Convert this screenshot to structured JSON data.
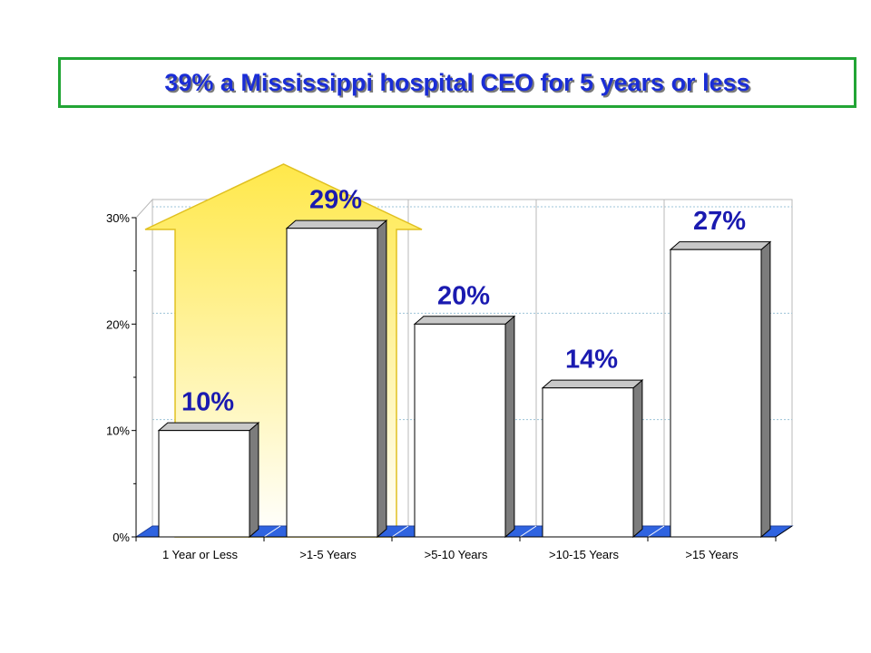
{
  "title": "39% a Mississippi hospital CEO for 5 years or less",
  "colors": {
    "title_border": "#22a535",
    "title_text": "#1a2dd6",
    "data_label": "#1a1ab0",
    "floor": "#2f63e0",
    "arrow": "#ffe84a"
  },
  "chart_data": {
    "type": "bar",
    "title": "39% a Mississippi hospital CEO for 5 years or less",
    "categories": [
      "1 Year or Less",
      ">1-5 Years",
      ">5-10 Years",
      ">10-15 Years",
      ">15 Years"
    ],
    "values": [
      10,
      29,
      20,
      14,
      27
    ],
    "data_labels": [
      "10%",
      "29%",
      "20%",
      "14%",
      "27%"
    ],
    "y_ticks": [
      "0%",
      "10%",
      "20%",
      "30%"
    ],
    "ylim": [
      0,
      30
    ],
    "grid": true,
    "annotation": {
      "type": "arrow",
      "spans_categories": [
        "1 Year or Less",
        ">1-5 Years"
      ],
      "label_value": 39
    }
  }
}
